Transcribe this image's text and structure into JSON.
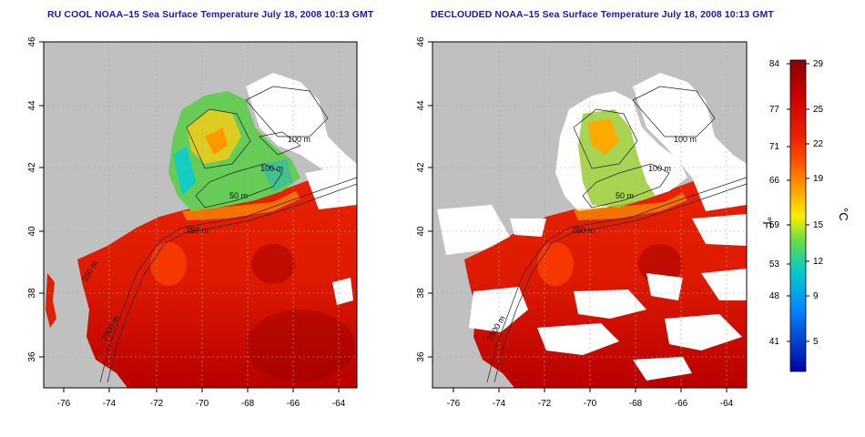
{
  "maps": [
    {
      "title": "RU COOL NOAA–15 Sea Surface Temperature July 18, 2008 10:13 GMT",
      "variant": "cool",
      "y_ticks": [
        "46",
        "44",
        "42",
        "40",
        "38",
        "36"
      ],
      "x_ticks": [
        "-76",
        "-74",
        "-72",
        "-70",
        "-68",
        "-66",
        "-64"
      ],
      "contour_labels": [
        "100 m",
        "100 m",
        "50 m",
        "250 m",
        "250 m",
        "2500 m"
      ]
    },
    {
      "title": "DECLOUDED NOAA–15 Sea Surface Temperature July 18, 2008 10:13 GMT",
      "variant": "declouded",
      "y_ticks": [
        "46",
        "44",
        "42",
        "40",
        "38",
        "36"
      ],
      "x_ticks": [
        "-76",
        "-74",
        "-72",
        "-70",
        "-68",
        "-66",
        "-64"
      ],
      "contour_labels": [
        "100 m",
        "100 m",
        "50 m",
        "250 m",
        "2500 m"
      ]
    }
  ],
  "colorbar": {
    "f_unit": "°F",
    "c_unit": "°C",
    "f_ticks": [
      "84",
      "77",
      "71",
      "66",
      "59",
      "53",
      "48",
      "41"
    ],
    "c_ticks": [
      "29",
      "25",
      "22",
      "19",
      "15",
      "12",
      "9",
      "5"
    ],
    "colors": [
      "#8b0000",
      "#cc0000",
      "#ee2200",
      "#ff5500",
      "#ffa500",
      "#ffee00",
      "#66dd44",
      "#00cccc",
      "#0088ff",
      "#0000cc"
    ]
  },
  "colors": {
    "land": "#c0c0c0",
    "cloud": "#ffffff",
    "title": "#1a1aa6"
  }
}
